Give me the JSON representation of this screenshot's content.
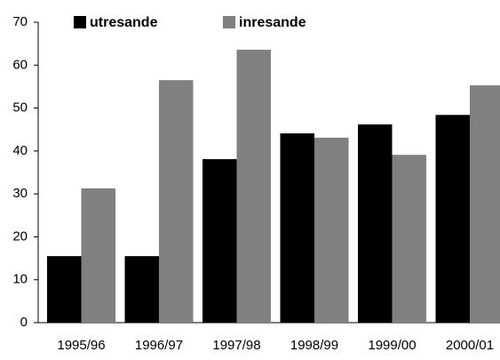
{
  "chart_data": {
    "type": "bar",
    "categories": [
      "1995/96",
      "1996/97",
      "1997/98",
      "1998/99",
      "1999/00",
      "2000/01"
    ],
    "series": [
      {
        "name": "utresande",
        "color": "#000000",
        "values": [
          15.5,
          15.5,
          38.1,
          44.1,
          46.2,
          48.4
        ]
      },
      {
        "name": "inresande",
        "color": "#808080",
        "values": [
          31.3,
          56.5,
          63.6,
          43.1,
          39.1,
          55.3
        ]
      }
    ],
    "ylim": [
      0,
      70
    ],
    "yticks": [
      0,
      10,
      20,
      30,
      40,
      50,
      60,
      70
    ],
    "grid": false,
    "legend": "top"
  }
}
